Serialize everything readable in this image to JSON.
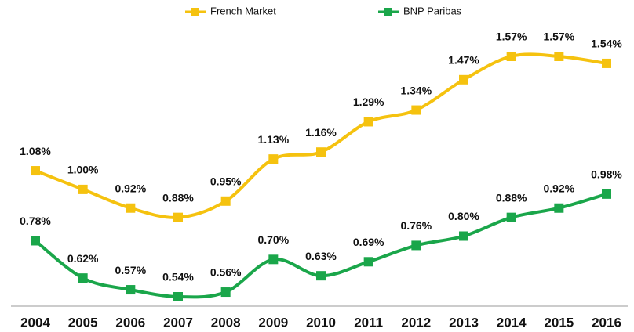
{
  "chart_data": {
    "type": "line",
    "categories": [
      "2004",
      "2005",
      "2006",
      "2007",
      "2008",
      "2009",
      "2010",
      "2011",
      "2012",
      "2013",
      "2014",
      "2015",
      "2016"
    ],
    "series": [
      {
        "name": "French Market",
        "color": "#f5c20f",
        "values": [
          1.08,
          1.0,
          0.92,
          0.88,
          0.95,
          1.13,
          1.16,
          1.29,
          1.34,
          1.47,
          1.57,
          1.57,
          1.54
        ],
        "value_labels": [
          "1.08%",
          "1.00%",
          "0.92%",
          "0.88%",
          "0.95%",
          "1.13%",
          "1.16%",
          "1.29%",
          "1.34%",
          "1.47%",
          "1.57%",
          "1.57%",
          "1.54%"
        ]
      },
      {
        "name": "BNP Paribas",
        "color": "#1aa64a",
        "values": [
          0.78,
          0.62,
          0.57,
          0.54,
          0.56,
          0.7,
          0.63,
          0.69,
          0.76,
          0.8,
          0.88,
          0.92,
          0.98
        ],
        "value_labels": [
          "0.78%",
          "0.62%",
          "0.57%",
          "0.54%",
          "0.56%",
          "0.70%",
          "0.63%",
          "0.69%",
          "0.76%",
          "0.80%",
          "0.88%",
          "0.92%",
          "0.98%"
        ]
      }
    ]
  }
}
